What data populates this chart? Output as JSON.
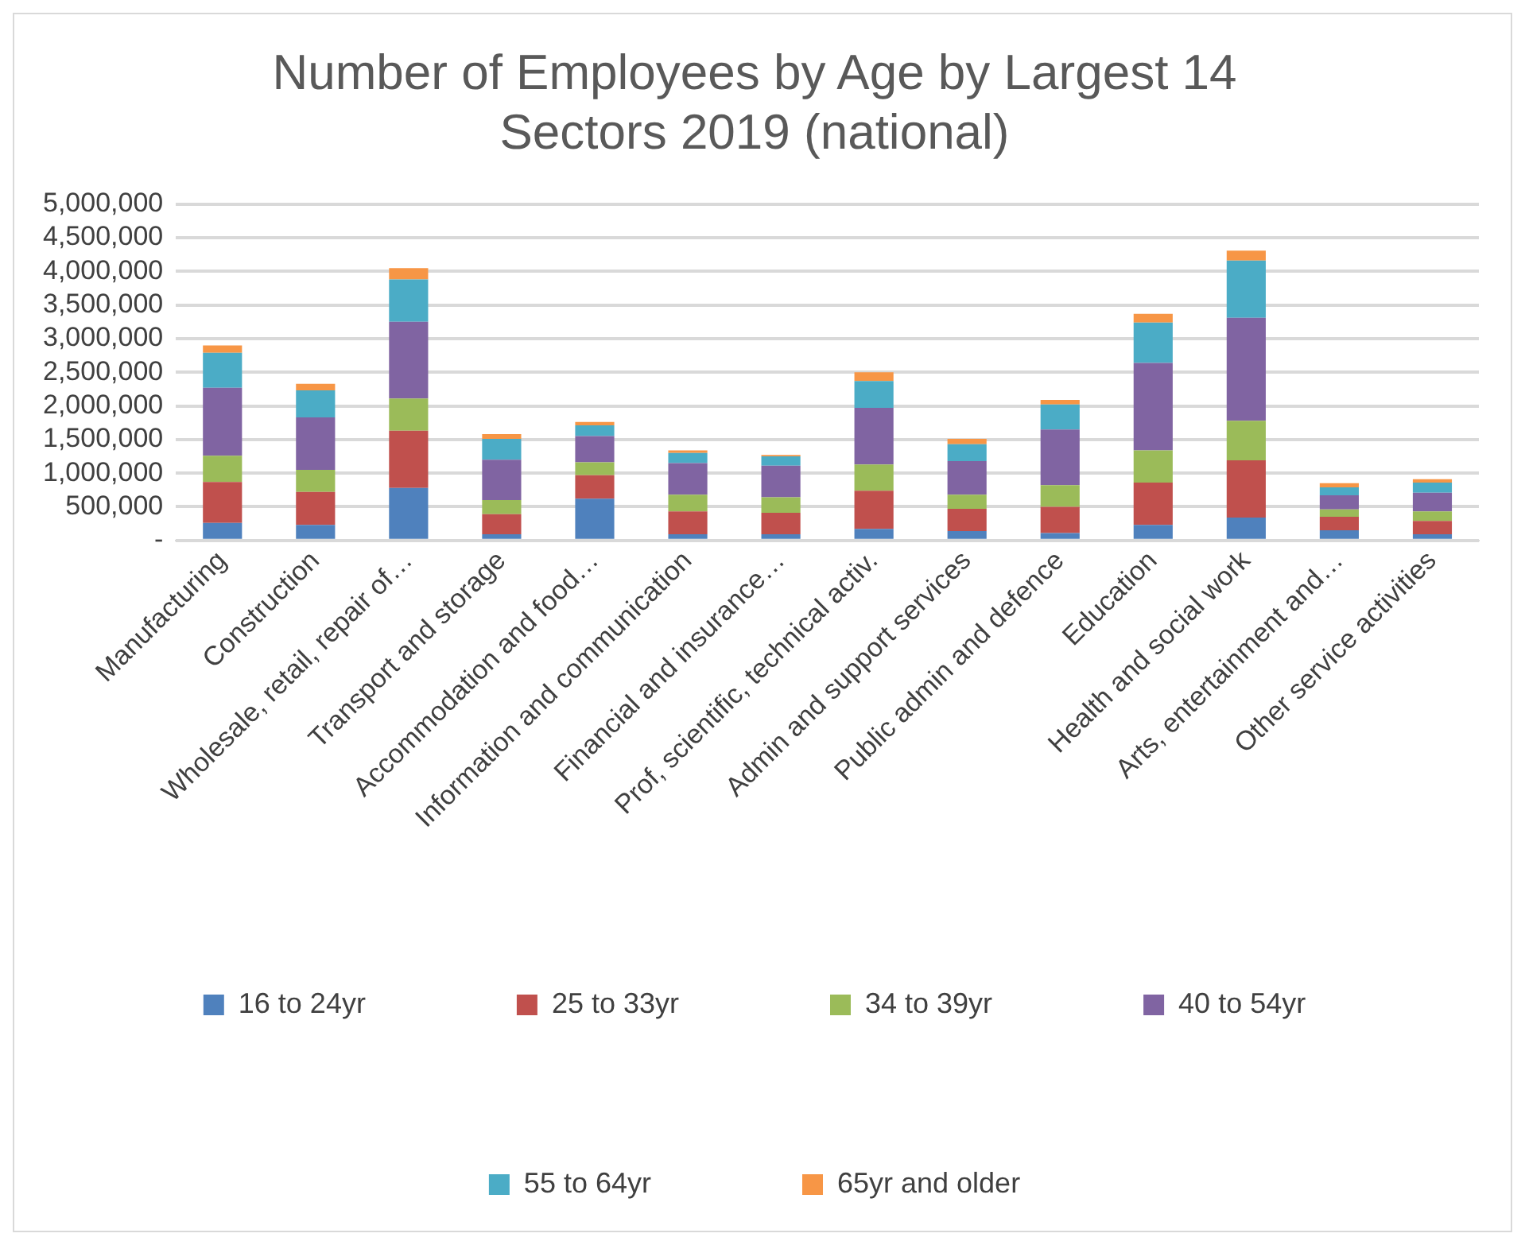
{
  "chart_data": {
    "type": "bar",
    "title": "Number of Employees by Age by Largest 14 Sectors 2019 (national)",
    "stacked": true,
    "categories": [
      "Manufacturing",
      "Construction",
      "Wholesale, retail, repair of…",
      "Transport and storage",
      "Accommodation and food…",
      "Information and communication",
      "Financial and insurance…",
      "Prof, scientific, technical activ.",
      "Admin and support services",
      "Public admin and defence",
      "Education",
      "Health and social work",
      "Arts, entertainment and…",
      "Other service activities"
    ],
    "series": [
      {
        "name": "16 to 24yr",
        "color": "#4f81bd",
        "values": [
          260000,
          230000,
          780000,
          90000,
          620000,
          90000,
          90000,
          170000,
          140000,
          110000,
          230000,
          340000,
          150000,
          90000
        ]
      },
      {
        "name": "25 to 33yr",
        "color": "#c0504d",
        "values": [
          610000,
          490000,
          850000,
          300000,
          350000,
          340000,
          320000,
          570000,
          330000,
          390000,
          630000,
          850000,
          200000,
          200000
        ]
      },
      {
        "name": "34 to 39yr",
        "color": "#9bbb59",
        "values": [
          390000,
          330000,
          480000,
          210000,
          190000,
          250000,
          230000,
          390000,
          210000,
          320000,
          480000,
          590000,
          110000,
          140000
        ]
      },
      {
        "name": "40 to 54yr",
        "color": "#8064a2",
        "values": [
          1010000,
          780000,
          1140000,
          600000,
          390000,
          470000,
          470000,
          840000,
          500000,
          830000,
          1300000,
          1530000,
          210000,
          280000
        ]
      },
      {
        "name": "55 to 64yr",
        "color": "#4bacc6",
        "values": [
          520000,
          400000,
          630000,
          310000,
          160000,
          150000,
          140000,
          400000,
          250000,
          370000,
          600000,
          850000,
          120000,
          150000
        ]
      },
      {
        "name": "65yr and older",
        "color": "#f79646",
        "values": [
          110000,
          100000,
          170000,
          70000,
          50000,
          40000,
          20000,
          130000,
          80000,
          70000,
          130000,
          150000,
          60000,
          50000
        ]
      }
    ],
    "ylim": [
      0,
      5000000
    ],
    "yticks": [
      {
        "value": 0,
        "label": "-"
      },
      {
        "value": 500000,
        "label": "500,000"
      },
      {
        "value": 1000000,
        "label": "1,000,000"
      },
      {
        "value": 1500000,
        "label": "1,500,000"
      },
      {
        "value": 2000000,
        "label": "2,000,000"
      },
      {
        "value": 2500000,
        "label": "2,500,000"
      },
      {
        "value": 3000000,
        "label": "3,000,000"
      },
      {
        "value": 3500000,
        "label": "3,500,000"
      },
      {
        "value": 4000000,
        "label": "4,000,000"
      },
      {
        "value": 4500000,
        "label": "4,500,000"
      },
      {
        "value": 5000000,
        "label": "5,000,000"
      }
    ],
    "grid": "y",
    "legend": "bottom"
  }
}
